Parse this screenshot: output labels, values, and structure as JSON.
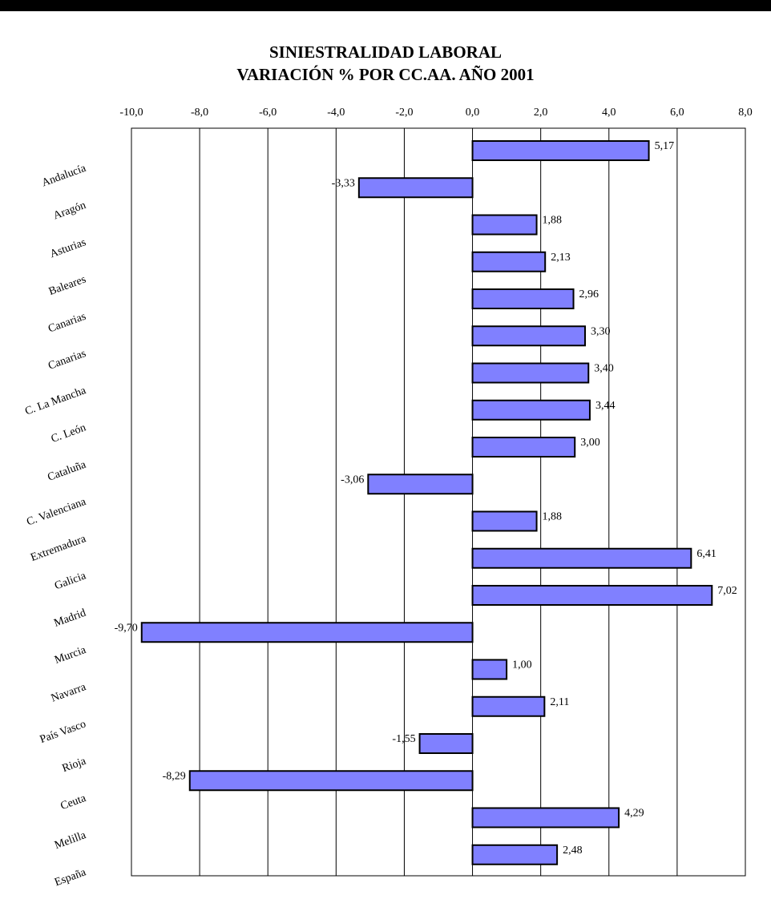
{
  "chart_data": {
    "type": "bar",
    "orientation": "horizontal",
    "title": "SINIESTRALIDAD LABORAL",
    "subtitle": "VARIACIÓN % POR CC.AA.  AÑO 2001",
    "xlim": [
      -10,
      8
    ],
    "xticks": [
      "-10,0",
      "-8,0",
      "-6,0",
      "-4,0",
      "-2,0",
      "0,0",
      "2,0",
      "4,0",
      "6,0",
      "8,0"
    ],
    "grid": true,
    "categories": [
      "Andalucía",
      "Aragón",
      "Asturias",
      "Baleares",
      "Canarias",
      "Canarias",
      "C. La Mancha",
      "C. León",
      "Cataluña",
      "C. Valenciana",
      "Extremadura",
      "Galicia",
      "Madrid",
      "Murcia",
      "Navarra",
      "País Vasco",
      "Rioja",
      "Ceuta",
      "Melilla",
      "España"
    ],
    "values": [
      5.17,
      -3.33,
      1.88,
      2.13,
      2.96,
      3.3,
      3.4,
      3.44,
      3.0,
      -3.06,
      1.88,
      6.41,
      7.02,
      -9.7,
      1.0,
      2.11,
      -1.55,
      -8.29,
      4.29,
      2.48
    ],
    "value_labels": [
      "5,17",
      "-3,33",
      "1,88",
      "2,13",
      "2,96",
      "3,30",
      "3,40",
      "3,44",
      "3,00",
      "-3,06",
      "1,88",
      "6,41",
      "7,02",
      "-9,70",
      "1,00",
      "2,11",
      "-1,55",
      "-8,29",
      "4,29",
      "2,48"
    ],
    "colors": {
      "bar": "#8080ff",
      "bar_stroke": "#000000",
      "grid": "#000000"
    }
  }
}
